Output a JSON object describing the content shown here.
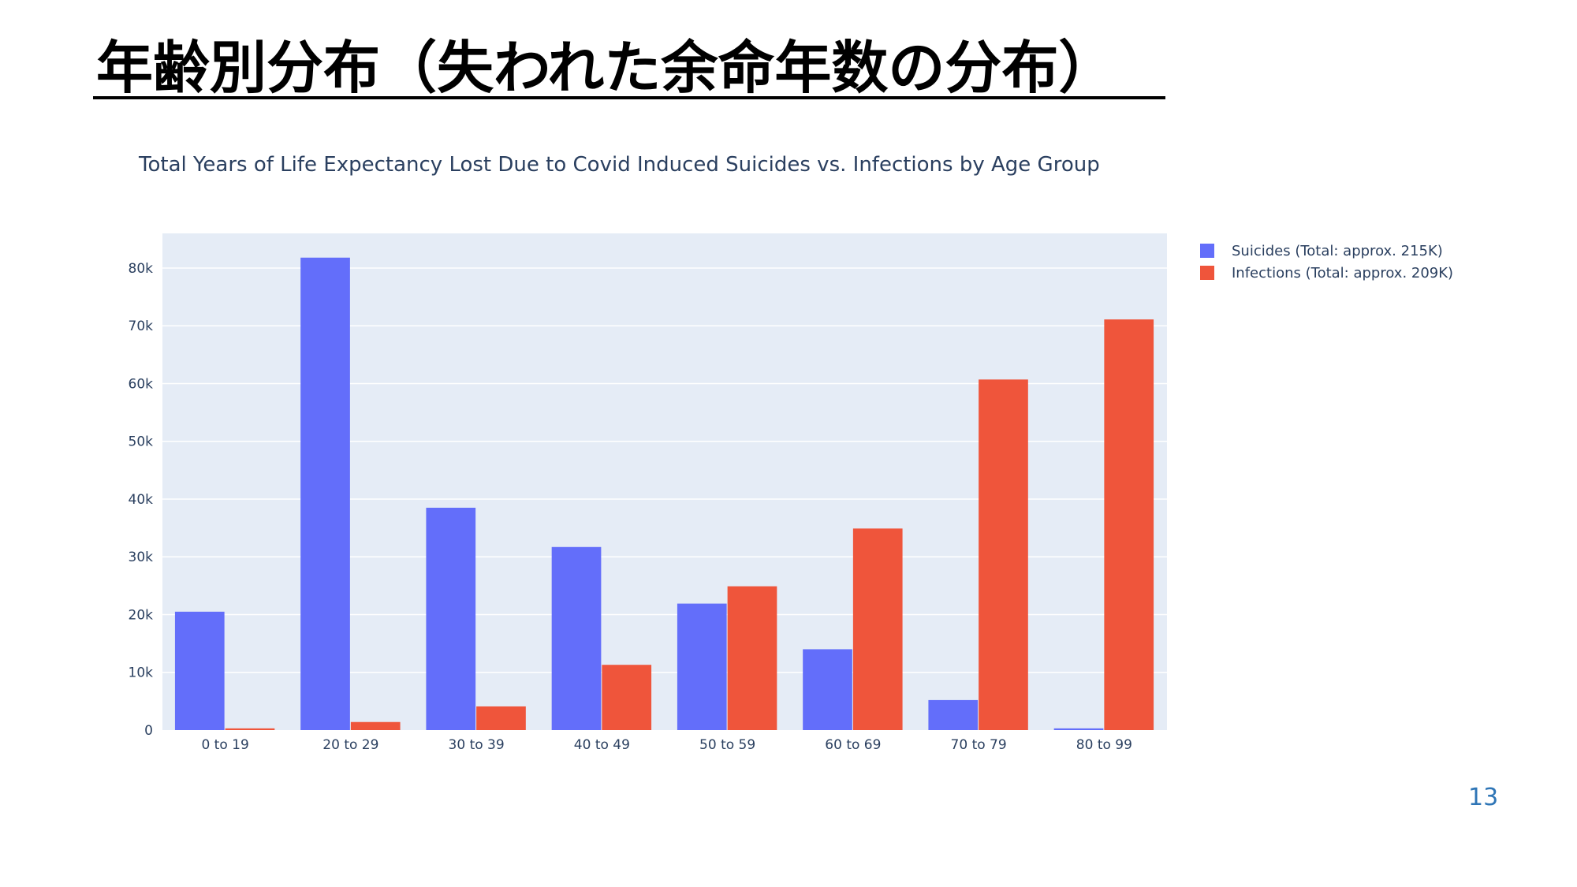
{
  "slide": {
    "title": "年齢別分布（失われた余命年数の分布）",
    "page_number": "13"
  },
  "chart_data": {
    "type": "bar",
    "title": "Total Years of Life Expectancy Lost Due to Covid Induced Suicides vs. Infections by Age Group",
    "xlabel": "",
    "ylabel": "",
    "categories": [
      "0 to 19",
      "20 to 29",
      "30 to 39",
      "40 to 49",
      "50 to 59",
      "60 to 69",
      "70 to 79",
      "80 to 99"
    ],
    "series": [
      {
        "name": "Suicides (Total: approx. 215K)",
        "color": "#636efa",
        "values": [
          20500,
          81800,
          38500,
          31700,
          21900,
          14000,
          5200,
          300
        ]
      },
      {
        "name": "Infections (Total: approx. 209K)",
        "color": "#ef553b",
        "values": [
          300,
          1400,
          4100,
          11300,
          24900,
          34900,
          60700,
          71100
        ]
      }
    ],
    "ylim": [
      0,
      86000
    ],
    "yticks": [
      0,
      10000,
      20000,
      30000,
      40000,
      50000,
      60000,
      70000,
      80000
    ],
    "ytick_labels": [
      "0",
      "10k",
      "20k",
      "30k",
      "40k",
      "50k",
      "60k",
      "70k",
      "80k"
    ],
    "grid": true,
    "plot_background": "#e5ecf6",
    "legend_position": "top-right"
  }
}
